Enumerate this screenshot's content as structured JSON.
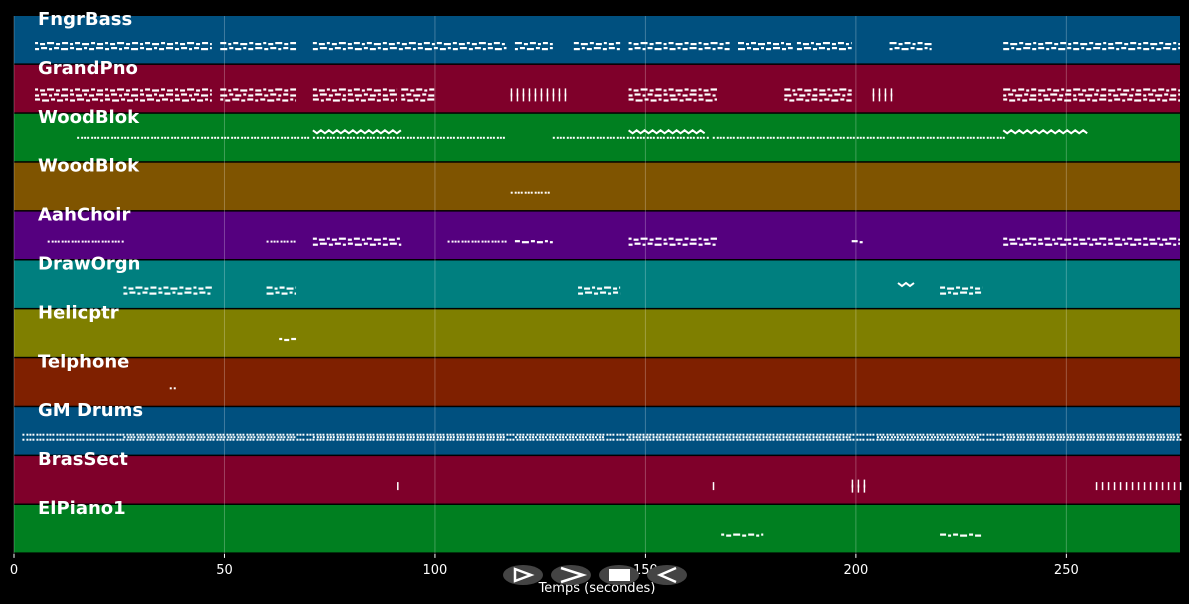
{
  "chart_data": {
    "type": "piano-roll",
    "xlabel": "Temps (secondes)",
    "xlim": [
      0,
      277
    ],
    "xticks": [
      0,
      50,
      100,
      150,
      200,
      250
    ],
    "grid": true,
    "tracks": [
      {
        "name": "FngrBass",
        "color": "#00507f",
        "segments": [
          [
            5,
            47,
            "bar",
            2
          ],
          [
            49,
            67,
            "bar",
            2
          ],
          [
            71,
            117,
            "bar",
            2
          ],
          [
            119,
            128,
            "bar",
            2
          ],
          [
            133,
            144,
            "bar",
            2
          ],
          [
            146,
            170,
            "bar",
            2
          ],
          [
            172,
            185,
            "bar",
            2
          ],
          [
            186,
            199,
            "bar",
            2
          ],
          [
            208,
            218,
            "bar",
            2
          ],
          [
            235,
            277,
            "bar",
            2
          ]
        ]
      },
      {
        "name": "GrandPno",
        "color": "#7f002a",
        "segments": [
          [
            5,
            47,
            "bar",
            3
          ],
          [
            49,
            67,
            "bar",
            3
          ],
          [
            71,
            91,
            "bar",
            3
          ],
          [
            92,
            100,
            "bar",
            3
          ],
          [
            118,
            132,
            "tick",
            2
          ],
          [
            146,
            167,
            "bar",
            3
          ],
          [
            183,
            199,
            "bar",
            3
          ],
          [
            204,
            209,
            "tick",
            2
          ],
          [
            235,
            277,
            "bar",
            3
          ]
        ]
      },
      {
        "name": "WoodBlok",
        "color": "#007f20",
        "segments": [
          [
            15,
            70,
            "dot",
            1
          ],
          [
            71,
            117,
            "dot",
            1
          ],
          [
            128,
            165,
            "dot",
            1
          ],
          [
            166,
            235,
            "dot",
            1
          ],
          [
            235,
            255,
            "wave",
            1
          ],
          [
            71,
            92,
            "wave",
            1
          ],
          [
            146,
            165,
            "wave",
            1
          ]
        ]
      },
      {
        "name": "WoodBlok",
        "color": "#7f5400",
        "segments": [
          [
            118,
            127,
            "dot",
            1
          ]
        ]
      },
      {
        "name": "AahChoir",
        "color": "#55007f",
        "segments": [
          [
            8,
            26,
            "dot",
            1
          ],
          [
            60,
            67,
            "dot",
            1
          ],
          [
            71,
            92,
            "bar",
            2
          ],
          [
            103,
            117,
            "dot",
            1
          ],
          [
            119,
            128,
            "bar",
            1
          ],
          [
            146,
            167,
            "bar",
            2
          ],
          [
            199,
            202,
            "bar",
            1
          ],
          [
            235,
            277,
            "bar",
            2
          ]
        ]
      },
      {
        "name": "DrawOrgn",
        "color": "#007f7f",
        "segments": [
          [
            26,
            47,
            "bar",
            2
          ],
          [
            60,
            67,
            "bar",
            2
          ],
          [
            134,
            144,
            "bar",
            2
          ],
          [
            210,
            214,
            "wave",
            1
          ],
          [
            220,
            230,
            "bar",
            2
          ]
        ]
      },
      {
        "name": "Helicptr",
        "color": "#7f7f00",
        "segments": [
          [
            63,
            67,
            "bar",
            1
          ]
        ]
      },
      {
        "name": "Telphone",
        "color": "#7f2000",
        "segments": [
          [
            37,
            38,
            "dot",
            1
          ]
        ]
      },
      {
        "name": "GM Drums",
        "color": "#00507f",
        "segments": [
          [
            2,
            277,
            "dot",
            2
          ],
          [
            26,
            67,
            "dot",
            1
          ],
          [
            71,
            117,
            "dot",
            1
          ],
          [
            119,
            140,
            "dot",
            1
          ],
          [
            146,
            199,
            "dot",
            1
          ],
          [
            205,
            229,
            "dot",
            1
          ],
          [
            235,
            277,
            "dot",
            1
          ]
        ]
      },
      {
        "name": "BrasSect",
        "color": "#7f002a",
        "segments": [
          [
            91,
            92,
            "tick",
            1
          ],
          [
            166,
            167,
            "tick",
            1
          ],
          [
            199,
            203,
            "tick",
            2
          ],
          [
            257,
            277,
            "tick",
            1
          ]
        ]
      },
      {
        "name": "ElPiano1",
        "color": "#007f20",
        "segments": [
          [
            168,
            178,
            "bar",
            1
          ],
          [
            220,
            230,
            "bar",
            1
          ]
        ]
      }
    ]
  },
  "controls": {
    "rewind_label": "rewind-icon",
    "play_label": "play-icon",
    "stop_label": "stop-icon",
    "back_label": "back-icon"
  }
}
